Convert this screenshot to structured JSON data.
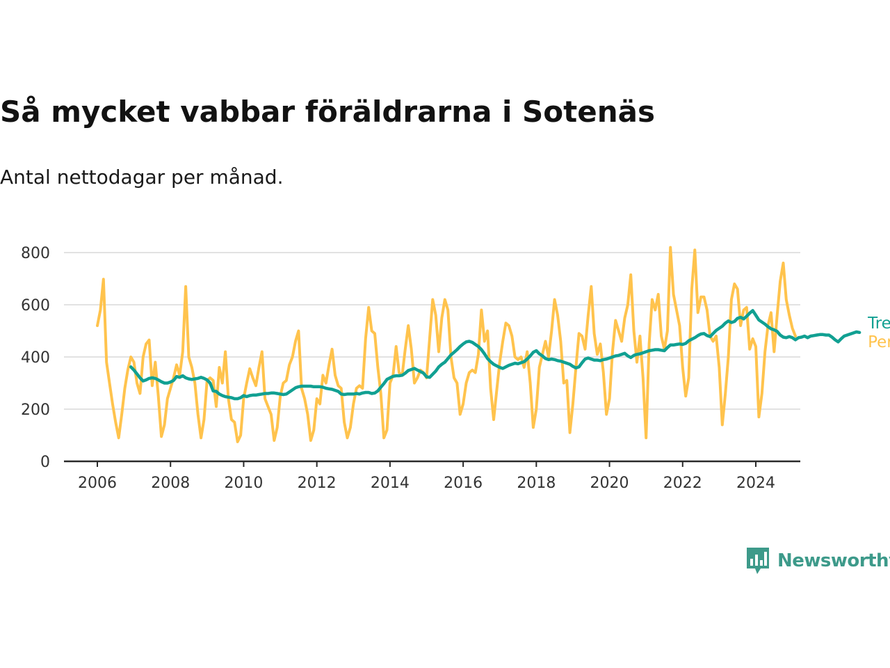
{
  "header": {
    "title": "Så mycket vabbar föräldrarna i Sotenäs",
    "subtitle": "Antal nettodagar per månad."
  },
  "brand": {
    "name": "Newsworthy",
    "logo_icon": "bar-chart-speech-bubble-icon",
    "color": "#3d9a8a"
  },
  "chart_data": {
    "type": "line",
    "xlim": [
      2006,
      2024.75
    ],
    "ylim": [
      0,
      800
    ],
    "x_ticks": [
      2006,
      2008,
      2010,
      2012,
      2014,
      2016,
      2018,
      2020,
      2022,
      2024
    ],
    "y_ticks": [
      0,
      200,
      400,
      600,
      800
    ],
    "grid": true,
    "legend": "right-end-labels",
    "series": [
      {
        "name": "Trend",
        "color": "#11a092",
        "start": [
          2006,
          12
        ],
        "values": [
          362,
          350,
          335,
          320,
          308,
          312,
          318,
          320,
          318,
          312,
          305,
          300,
          300,
          304,
          310,
          325,
          322,
          328,
          320,
          316,
          314,
          316,
          318,
          322,
          318,
          312,
          300,
          270,
          268,
          258,
          252,
          248,
          246,
          244,
          240,
          240,
          244,
          252,
          248,
          252,
          254,
          254,
          256,
          258,
          260,
          260,
          262,
          262,
          260,
          258,
          256,
          258,
          266,
          274,
          282,
          286,
          288,
          288,
          288,
          288,
          286,
          286,
          286,
          284,
          280,
          278,
          276,
          272,
          268,
          258,
          256,
          258,
          258,
          258,
          260,
          258,
          262,
          264,
          264,
          260,
          262,
          270,
          284,
          298,
          314,
          320,
          326,
          328,
          328,
          330,
          338,
          348,
          352,
          356,
          350,
          344,
          338,
          324,
          322,
          334,
          346,
          362,
          372,
          380,
          394,
          408,
          418,
          428,
          440,
          450,
          458,
          460,
          456,
          448,
          440,
          428,
          412,
          394,
          382,
          372,
          366,
          360,
          356,
          362,
          368,
          372,
          376,
          374,
          378,
          382,
          392,
          404,
          418,
          424,
          412,
          404,
          394,
          390,
          392,
          390,
          386,
          384,
          380,
          376,
          372,
          364,
          358,
          362,
          378,
          392,
          396,
          392,
          388,
          388,
          386,
          390,
          392,
          396,
          400,
          404,
          406,
          410,
          414,
          404,
          398,
          406,
          410,
          412,
          416,
          420,
          424,
          426,
          428,
          428,
          426,
          424,
          436,
          446,
          446,
          448,
          450,
          448,
          452,
          462,
          468,
          474,
          482,
          488,
          490,
          482,
          478,
          490,
          502,
          510,
          518,
          530,
          538,
          532,
          536,
          548,
          552,
          546,
          556,
          568,
          578,
          560,
          542,
          534,
          526,
          516,
          508,
          504,
          498,
          484,
          476,
          474,
          478,
          474,
          466,
          474,
          476,
          480,
          474,
          480,
          482,
          484,
          486,
          486,
          484,
          484,
          476,
          466,
          458,
          470,
          480,
          484,
          488,
          492,
          496,
          494
        ]
      },
      {
        "name": "Per månad",
        "color": "#ffc34d",
        "start": [
          2006,
          1
        ],
        "values": [
          520,
          580,
          698,
          380,
          300,
          220,
          150,
          90,
          180,
          280,
          350,
          400,
          380,
          300,
          260,
          400,
          450,
          465,
          290,
          380,
          250,
          95,
          140,
          240,
          280,
          320,
          370,
          330,
          420,
          670,
          400,
          360,
          300,
          180,
          90,
          160,
          310,
          320,
          310,
          210,
          360,
          300,
          420,
          240,
          160,
          150,
          75,
          100,
          240,
          300,
          355,
          320,
          290,
          360,
          420,
          240,
          210,
          180,
          80,
          130,
          250,
          300,
          310,
          370,
          400,
          460,
          500,
          280,
          240,
          180,
          80,
          120,
          240,
          220,
          330,
          300,
          370,
          430,
          330,
          290,
          280,
          150,
          90,
          130,
          220,
          280,
          290,
          280,
          470,
          590,
          500,
          490,
          360,
          260,
          90,
          120,
          300,
          330,
          440,
          340,
          330,
          430,
          520,
          430,
          300,
          320,
          350,
          340,
          320,
          470,
          620,
          560,
          420,
          550,
          620,
          580,
          400,
          320,
          300,
          180,
          220,
          300,
          340,
          350,
          340,
          410,
          580,
          460,
          500,
          280,
          160,
          270,
          380,
          460,
          530,
          520,
          480,
          400,
          390,
          400,
          360,
          420,
          300,
          130,
          200,
          360,
          410,
          460,
          400,
          500,
          620,
          560,
          460,
          300,
          310,
          110,
          220,
          360,
          490,
          480,
          430,
          560,
          670,
          490,
          410,
          450,
          340,
          180,
          240,
          420,
          540,
          500,
          460,
          550,
          600,
          715,
          500,
          380,
          480,
          320,
          90,
          450,
          620,
          580,
          640,
          480,
          430,
          500,
          820,
          640,
          580,
          520,
          360,
          250,
          320,
          660,
          810,
          570,
          630,
          630,
          580,
          480,
          460,
          480,
          360,
          140,
          260,
          400,
          620,
          680,
          660,
          520,
          580,
          590,
          430,
          470,
          440,
          170,
          260,
          420,
          520,
          570,
          420,
          560,
          690,
          760,
          620,
          560,
          510,
          480
        ]
      }
    ]
  }
}
